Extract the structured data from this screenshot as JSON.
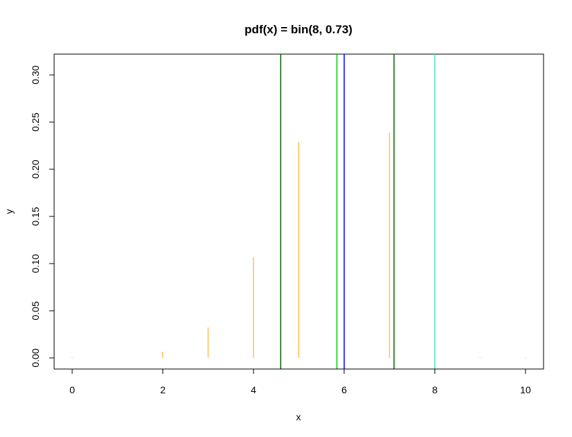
{
  "chart_data": {
    "type": "bar",
    "title": "pdf(x) = bin(8, 0.73)",
    "xlabel": "x",
    "ylabel": "y",
    "xlim": [
      0,
      10
    ],
    "ylim": [
      0,
      0.3
    ],
    "x_ticks": [
      "0",
      "2",
      "4",
      "6",
      "8",
      "10"
    ],
    "y_ticks": [
      "0.00",
      "0.05",
      "0.10",
      "0.15",
      "0.20",
      "0.25",
      "0.30"
    ],
    "grid": false,
    "series": [
      {
        "x": [
          0,
          1,
          2,
          3,
          4,
          5,
          6,
          7,
          8,
          9,
          10
        ],
        "values": [
          0.0,
          0.0002,
          0.0066,
          0.0324,
          0.1066,
          0.2286,
          0.3088,
          0.2386,
          0.0806,
          0,
          0
        ],
        "color": "#FFA500"
      }
    ],
    "vertical_lines": [
      {
        "x": 4.6,
        "color": "#006400"
      },
      {
        "x": 5.84,
        "color": "#00CD00"
      },
      {
        "x": 6.0,
        "color": "#0000FF"
      },
      {
        "x": 7.1,
        "color": "#006400"
      },
      {
        "x": 8.0,
        "color": "#40E0D0"
      }
    ]
  }
}
